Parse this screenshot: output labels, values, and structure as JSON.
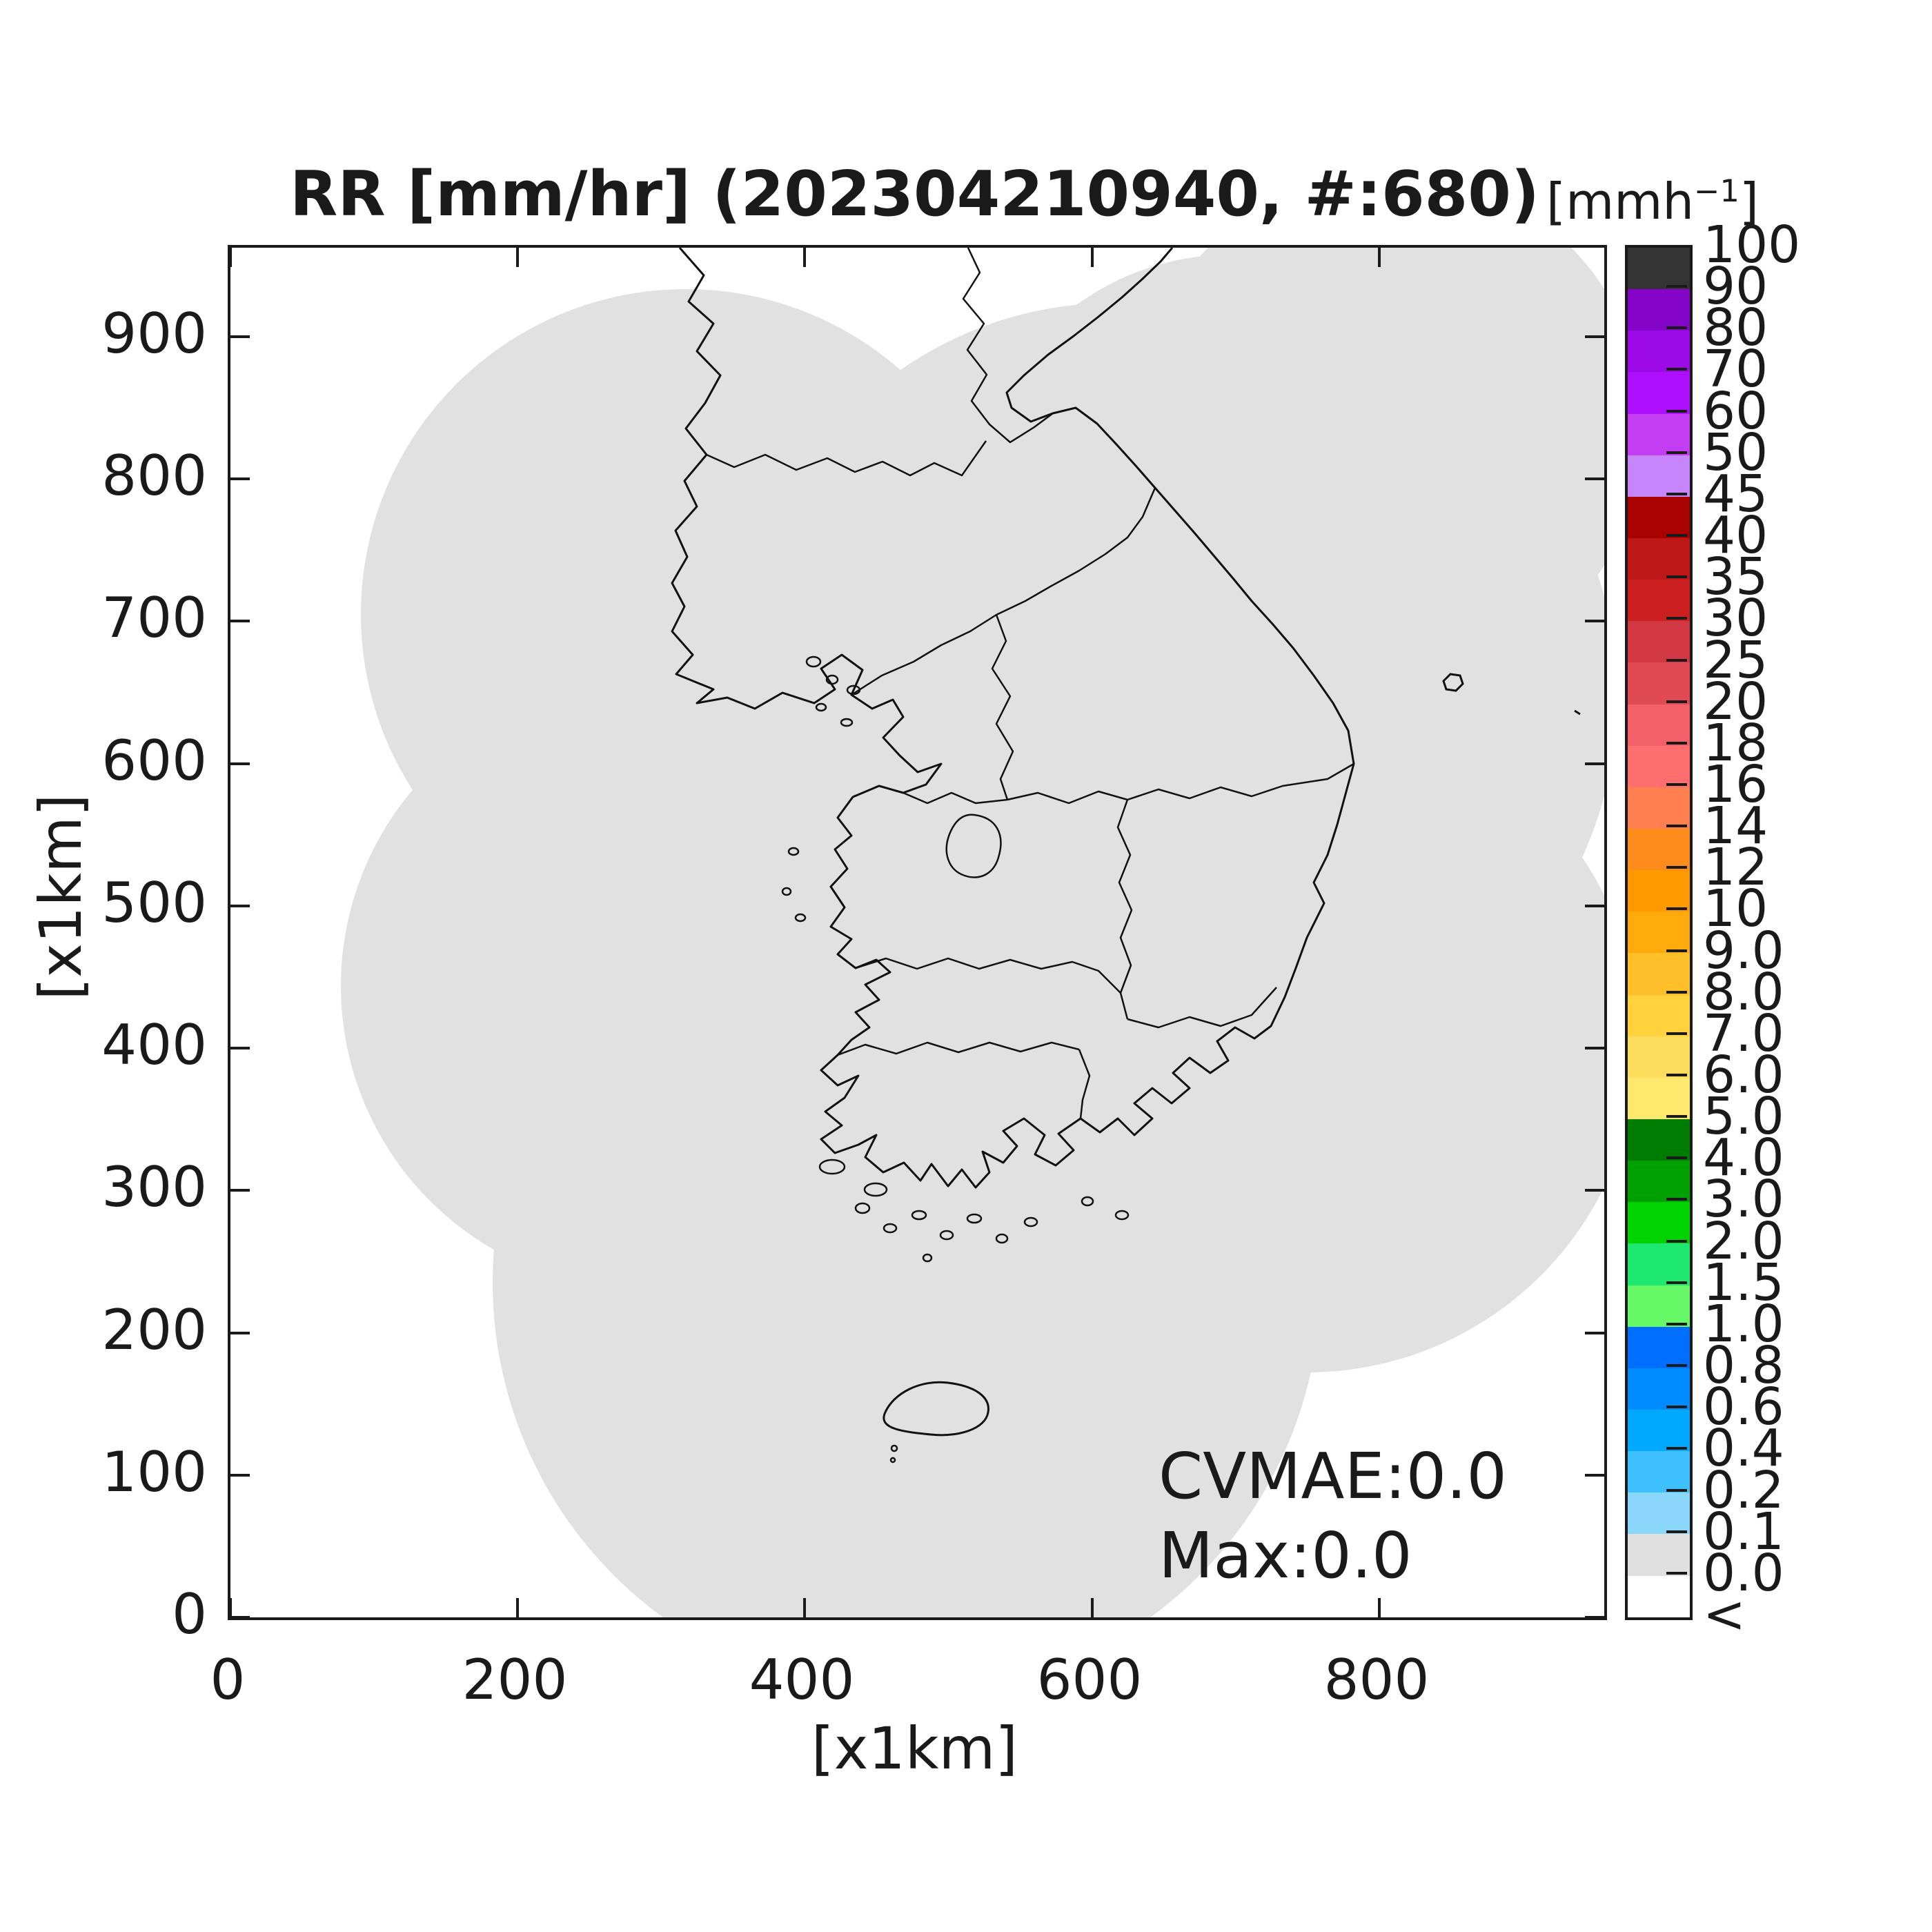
{
  "title": "RR [mm/hr] (202304210940, #:680)",
  "axes": {
    "x_label": "[x1km]",
    "y_label": "[x1km]",
    "x_tick_labels": [
      "0",
      "200",
      "400",
      "600",
      "800"
    ],
    "y_tick_labels": [
      "0",
      "100",
      "200",
      "300",
      "400",
      "500",
      "600",
      "700",
      "800",
      "900"
    ]
  },
  "annotations": {
    "cvmae_text": "CVMAE:0.0",
    "max_text": "Max:0.0"
  },
  "colorbar": {
    "unit_prefix": "[mmh",
    "unit_sup": "−1",
    "unit_suffix": "]",
    "tick_labels": [
      "100",
      "90",
      "80",
      "70",
      "60",
      "50",
      "45",
      "40",
      "35",
      "30",
      "25",
      "20",
      "18",
      "16",
      "14",
      "12",
      "10",
      "9.0",
      "8.0",
      "7.0",
      "6.0",
      "5.0",
      "4.0",
      "3.0",
      "2.0",
      "1.5",
      "1.0",
      "0.8",
      "0.6",
      "0.4",
      "0.2",
      "0.1",
      "0.0",
      "<"
    ],
    "segment_colors_top_to_bottom": [
      "#333333",
      "#8405c8",
      "#9c0ae8",
      "#ad0ffe",
      "#c43df2",
      "#c685fb",
      "#a90000",
      "#bd1717",
      "#ca2020",
      "#d23843",
      "#e14a54",
      "#f4606a",
      "#fe6e6e",
      "#fe7f4f",
      "#fe8c1d",
      "#fe9900",
      "#feaa0c",
      "#febf29",
      "#fed13d",
      "#fedd5c",
      "#fee86d",
      "#007d00",
      "#00a000",
      "#00d300",
      "#1fe871",
      "#66f866",
      "#006efe",
      "#008cfe",
      "#00a9fe",
      "#3ec0fe",
      "#8ad7fb",
      "#e0e0e0",
      "#ffffff"
    ]
  },
  "map": {
    "coverage_color": "#e1e1e1",
    "outline_color": "#111111",
    "background_color": "#ffffff"
  },
  "chart_data": {
    "type": "heatmap",
    "title": "RR [mm/hr] (202304210940, #:680)",
    "timestamp_label": "202304210940",
    "count_label": "#:680",
    "xlabel": "[x1km]",
    "ylabel": "[x1km]",
    "xlim": [
      0,
      957
    ],
    "ylim": [
      0,
      962
    ],
    "x_ticks": [
      0,
      200,
      400,
      600,
      800
    ],
    "y_ticks": [
      0,
      100,
      200,
      300,
      400,
      500,
      600,
      700,
      800,
      900
    ],
    "grid": false,
    "legend_position": "right-colorbar",
    "colorbar_unit": "mmh^-1",
    "colorbar_levels_top_to_bottom": [
      "100",
      "90",
      "80",
      "70",
      "60",
      "50",
      "45",
      "40",
      "35",
      "30",
      "25",
      "20",
      "18",
      "16",
      "14",
      "12",
      "10",
      "9.0",
      "8.0",
      "7.0",
      "6.0",
      "5.0",
      "4.0",
      "3.0",
      "2.0",
      "1.5",
      "1.0",
      "0.8",
      "0.6",
      "0.4",
      "0.2",
      "0.1",
      "0.0",
      "<"
    ],
    "colorbar_colors_top_to_bottom": [
      "#333333",
      "#8405c8",
      "#9c0ae8",
      "#ad0ffe",
      "#c43df2",
      "#c685fb",
      "#a90000",
      "#bd1717",
      "#ca2020",
      "#d23843",
      "#e14a54",
      "#f4606a",
      "#fe6e6e",
      "#fe7f4f",
      "#fe8c1d",
      "#fe9900",
      "#feaa0c",
      "#febf29",
      "#fed13d",
      "#fedd5c",
      "#fee86d",
      "#007d00",
      "#00a000",
      "#00d300",
      "#1fe871",
      "#66f866",
      "#006efe",
      "#008cfe",
      "#00a9fe",
      "#3ec0fe",
      "#8ad7fb",
      "#e0e0e0",
      "#ffffff"
    ],
    "field_values": "uniform 0.0 mm/hr over radar coverage area (light gray); outside coverage blank (white)",
    "stats": {
      "CVMAE": 0.0,
      "Max": 0.0
    }
  }
}
